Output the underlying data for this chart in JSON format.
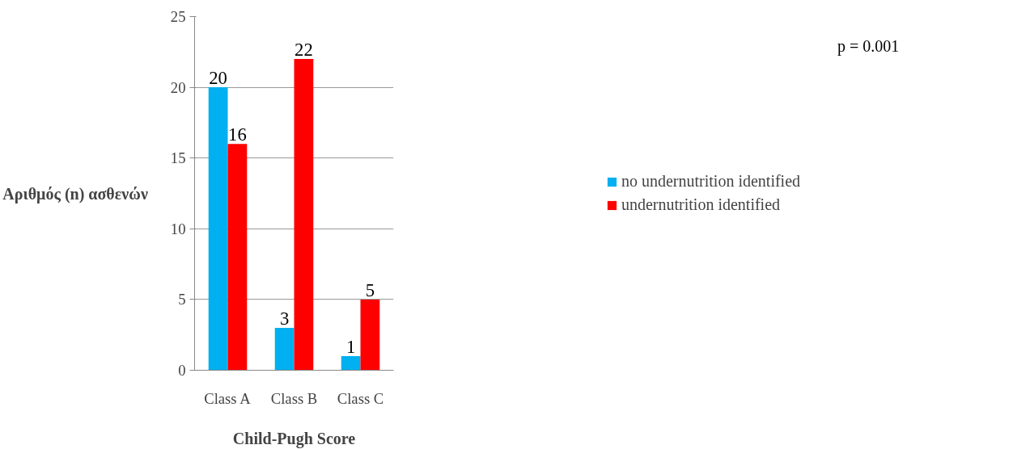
{
  "chart_data": {
    "type": "bar",
    "xlabel": "Child-Pugh Score",
    "ylabel": "Αριθμός (n) ασθενών",
    "categories": [
      "Class A",
      "Class B",
      "Class C"
    ],
    "series": [
      {
        "name": "no undernutrition identified",
        "color": "#00b0f0",
        "values": [
          20,
          3,
          1
        ]
      },
      {
        "name": "undernutrition identified",
        "color": "#ff0000",
        "values": [
          16,
          22,
          5
        ]
      }
    ],
    "ylim": [
      0,
      25
    ],
    "yticks": [
      0,
      5,
      10,
      15,
      20,
      25
    ],
    "grid": "y",
    "legend": "right",
    "data_labels": true,
    "annotations": [
      "p = 0.001"
    ]
  }
}
